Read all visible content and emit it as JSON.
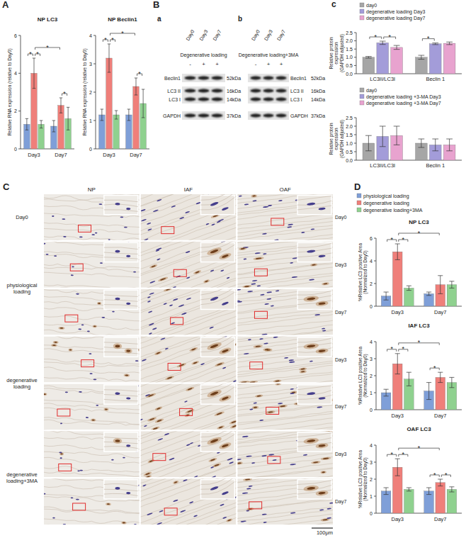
{
  "panel_letters": [
    "A",
    "B",
    "a",
    "b",
    "c",
    "C",
    "D"
  ],
  "chart_data": [
    {
      "type": "bar",
      "title": "NP LC3",
      "y_label": "Relative RNA expression (relative to Day0)",
      "categories": [
        "Day3",
        "Day7"
      ],
      "ylim": [
        0,
        6
      ],
      "yticks": [
        0,
        2,
        4,
        6
      ],
      "series": [
        {
          "color": "#7f9fd8",
          "values": [
            1.3,
            1.2
          ],
          "errors": [
            0.3,
            0.3
          ]
        },
        {
          "color": "#ef7f7a",
          "values": [
            4.0,
            2.3
          ],
          "errors": [
            0.8,
            0.4
          ]
        },
        {
          "color": "#8fd18f",
          "values": [
            1.3,
            1.6
          ],
          "errors": [
            0.2,
            0.6
          ]
        }
      ],
      "significance": [
        {
          "from": [
            0,
            0
          ],
          "to": [
            0,
            1
          ],
          "label": "*"
        },
        {
          "from": [
            0,
            1
          ],
          "to": [
            0,
            2
          ],
          "label": "*"
        },
        {
          "from": [
            1,
            1
          ],
          "to": [
            1,
            2
          ],
          "label": "*"
        },
        {
          "from": [
            0,
            1
          ],
          "to": [
            1,
            1
          ],
          "label": "*"
        }
      ]
    },
    {
      "type": "bar",
      "title": "NP Beclin1",
      "y_label": "Relative RNA expression (relative to Day0)",
      "categories": [
        "Day3",
        "Day7"
      ],
      "ylim": [
        0,
        4
      ],
      "yticks": [
        0,
        1,
        2,
        3,
        4
      ],
      "series": [
        {
          "color": "#7f9fd8",
          "values": [
            1.2,
            1.2
          ],
          "errors": [
            0.2,
            0.2
          ]
        },
        {
          "color": "#ef7f7a",
          "values": [
            3.2,
            2.2
          ],
          "errors": [
            0.5,
            0.3
          ]
        },
        {
          "color": "#8fd18f",
          "values": [
            1.2,
            1.6
          ],
          "errors": [
            0.15,
            0.5
          ]
        }
      ],
      "significance": [
        {
          "from": [
            0,
            0
          ],
          "to": [
            0,
            1
          ],
          "label": "*"
        },
        {
          "from": [
            0,
            1
          ],
          "to": [
            0,
            2
          ],
          "label": "*"
        },
        {
          "from": [
            1,
            1
          ],
          "to": [
            1,
            2
          ],
          "label": "*"
        },
        {
          "from": [
            0,
            1
          ],
          "to": [
            1,
            1
          ],
          "label": "*"
        }
      ]
    },
    {
      "type": "bar",
      "y_label": "Relative protein expression (GAPDH adjusted)",
      "categories": [
        "LC3II/LC3I",
        "Beclin 1"
      ],
      "ylim": [
        0,
        2.5
      ],
      "yticks": [
        {
          "value": 0,
          "label": "0.0"
        },
        {
          "value": 0.5,
          "label": "0.5"
        },
        {
          "value": 1,
          "label": "1.0"
        },
        {
          "value": 1.5,
          "label": "1.5"
        },
        {
          "value": 2,
          "label": "2.0"
        },
        {
          "value": 2.5,
          "label": "2.5"
        }
      ],
      "legend": "top",
      "series": [
        {
          "name": "day0",
          "color": "#a6a6a6",
          "values": [
            1.0,
            1.0
          ],
          "errors": [
            0.05,
            0.12
          ]
        },
        {
          "name": "degenerative loading Day3",
          "color": "#a39cd9",
          "values": [
            1.88,
            1.82
          ],
          "errors": [
            0.1,
            0.05
          ]
        },
        {
          "name": "degenerative loading Day7",
          "color": "#e8a3cf",
          "values": [
            1.6,
            1.85
          ],
          "errors": [
            0.12,
            0.08
          ]
        }
      ],
      "significance": [
        {
          "from": [
            0,
            0
          ],
          "to": [
            0,
            1
          ],
          "label": "*"
        },
        {
          "from": [
            0,
            1
          ],
          "to": [
            0,
            2
          ],
          "label": "*"
        },
        {
          "from": [
            1,
            0
          ],
          "to": [
            1,
            1
          ],
          "label": "*"
        }
      ]
    },
    {
      "type": "bar",
      "y_label": "Relative protein expression (GAPDH adjusted)",
      "categories": [
        "LC3II/LC3I",
        "Beclin 1"
      ],
      "ylim": [
        0,
        2.5
      ],
      "yticks": [
        {
          "value": 0,
          "label": "0.0"
        },
        {
          "value": 0.5,
          "label": "0.5"
        },
        {
          "value": 1,
          "label": "1.0"
        },
        {
          "value": 1.5,
          "label": "1.5"
        },
        {
          "value": 2,
          "label": "2.0"
        },
        {
          "value": 2.5,
          "label": "2.5"
        }
      ],
      "legend": "top",
      "series": [
        {
          "name": "day0",
          "color": "#a6a6a6",
          "values": [
            1.0,
            1.0
          ],
          "errors": [
            0.45,
            0.25
          ]
        },
        {
          "name": "degenerative loading +3-MA Day3",
          "color": "#a39cd9",
          "values": [
            1.4,
            0.9
          ],
          "errors": [
            0.6,
            0.35
          ]
        },
        {
          "name": "degenerative loading +3-MA Day7",
          "color": "#e8a3cf",
          "values": [
            1.45,
            0.9
          ],
          "errors": [
            0.55,
            0.35
          ]
        }
      ]
    },
    {
      "type": "bar",
      "title": "NP LC3",
      "y_label": "%Relative LC3 positive Area (Normalized to Day0)",
      "categories": [
        "Day3",
        "Day7"
      ],
      "ylim": [
        0,
        6
      ],
      "yticks": [
        0,
        2,
        4,
        6
      ],
      "legend": "top",
      "series": [
        {
          "name": "physiological loading",
          "color": "#7f9fd8",
          "values": [
            0.9,
            1.1
          ],
          "errors": [
            0.35,
            0.15
          ]
        },
        {
          "name": "degenerative loading",
          "color": "#ef7f7a",
          "values": [
            4.8,
            1.9
          ],
          "errors": [
            0.7,
            0.8
          ]
        },
        {
          "name": "degenerative loading+3MA",
          "color": "#8fd18f",
          "values": [
            1.6,
            1.9
          ],
          "errors": [
            0.2,
            0.3
          ]
        }
      ],
      "significance": [
        {
          "from": [
            0,
            0
          ],
          "to": [
            0,
            1
          ],
          "label": "*"
        },
        {
          "from": [
            0,
            1
          ],
          "to": [
            0,
            2
          ],
          "label": "*"
        },
        {
          "from": [
            0,
            1
          ],
          "to": [
            1,
            1
          ],
          "label": "*"
        }
      ]
    },
    {
      "type": "bar",
      "title": "IAF LC3",
      "y_label": "%Relative LC3 positive Area (Normalized to Day0)",
      "categories": [
        "Day3",
        "Day7"
      ],
      "ylim": [
        0,
        4
      ],
      "yticks": [
        0,
        1,
        2,
        3,
        4
      ],
      "series": [
        {
          "color": "#7f9fd8",
          "values": [
            1.0,
            1.1
          ],
          "errors": [
            0.2,
            0.5
          ]
        },
        {
          "color": "#ef7f7a",
          "values": [
            2.7,
            1.9
          ],
          "errors": [
            0.6,
            0.3
          ]
        },
        {
          "color": "#8fd18f",
          "values": [
            1.8,
            1.6
          ],
          "errors": [
            0.4,
            0.3
          ]
        }
      ],
      "significance": [
        {
          "from": [
            0,
            0
          ],
          "to": [
            0,
            1
          ],
          "label": "*"
        },
        {
          "from": [
            0,
            1
          ],
          "to": [
            0,
            2
          ],
          "label": "*"
        },
        {
          "from": [
            1,
            0
          ],
          "to": [
            1,
            1
          ],
          "label": "*"
        },
        {
          "from": [
            0,
            1
          ],
          "to": [
            1,
            1
          ],
          "label": "*"
        }
      ]
    },
    {
      "type": "bar",
      "title": "OAF LC3",
      "y_label": "%Relative LC3 positive Area (Normalized to Day0)",
      "categories": [
        "Day3",
        "Day7"
      ],
      "ylim": [
        0,
        4
      ],
      "yticks": [
        0,
        1,
        2,
        3,
        4
      ],
      "series": [
        {
          "color": "#7f9fd8",
          "values": [
            1.3,
            1.3
          ],
          "errors": [
            0.2,
            0.2
          ]
        },
        {
          "color": "#ef7f7a",
          "values": [
            2.7,
            1.8
          ],
          "errors": [
            0.5,
            0.2
          ]
        },
        {
          "color": "#8fd18f",
          "values": [
            1.4,
            1.4
          ],
          "errors": [
            0.1,
            0.15
          ]
        }
      ],
      "significance": [
        {
          "from": [
            0,
            0
          ],
          "to": [
            0,
            1
          ],
          "label": "*"
        },
        {
          "from": [
            0,
            1
          ],
          "to": [
            0,
            2
          ],
          "label": "*"
        },
        {
          "from": [
            1,
            0
          ],
          "to": [
            1,
            1
          ],
          "label": "*"
        },
        {
          "from": [
            1,
            1
          ],
          "to": [
            1,
            2
          ],
          "label": "*"
        },
        {
          "from": [
            0,
            1
          ],
          "to": [
            1,
            1
          ],
          "label": "*"
        }
      ]
    }
  ],
  "blots": [
    {
      "lanes": [
        "Day0",
        "Day3",
        "Day7"
      ],
      "condition": "Degenerative loading",
      "signs": [
        "-",
        "+",
        "+"
      ],
      "proteins": [
        {
          "name": "Beclin1",
          "size": "52kDa"
        },
        {
          "name": "LC3 II",
          "size": "16kDa"
        },
        {
          "name": "LC3 I",
          "size": "14kDa"
        },
        {
          "name": "GAPDH",
          "size": "37kDa"
        }
      ]
    },
    {
      "lanes": [
        "Day0",
        "Day3",
        "Day7"
      ],
      "condition": "Degenerative loading+3MA",
      "signs": [
        "-",
        "+",
        "+"
      ],
      "proteins": [
        {
          "name": "Beclin1",
          "size": "52kDa"
        },
        {
          "name": "LC3 II",
          "size": "16kDa"
        },
        {
          "name": "LC3 I",
          "size": "14kDa"
        },
        {
          "name": "GAPDH",
          "size": "37kDa"
        }
      ]
    }
  ],
  "histology": {
    "columns": [
      "NP",
      "IAF",
      "OAF"
    ],
    "groups": [
      {
        "label": "Day0",
        "days": [
          "Day0"
        ]
      },
      {
        "label": "physiological loading",
        "days": [
          "Day3",
          "Day7"
        ]
      },
      {
        "label": "degenerative loading",
        "days": [
          "Day3",
          "Day7"
        ]
      },
      {
        "label": "degenerative loading+3MA",
        "days": [
          "Day3",
          "Day7"
        ]
      }
    ],
    "scale_bar": "100μm"
  }
}
